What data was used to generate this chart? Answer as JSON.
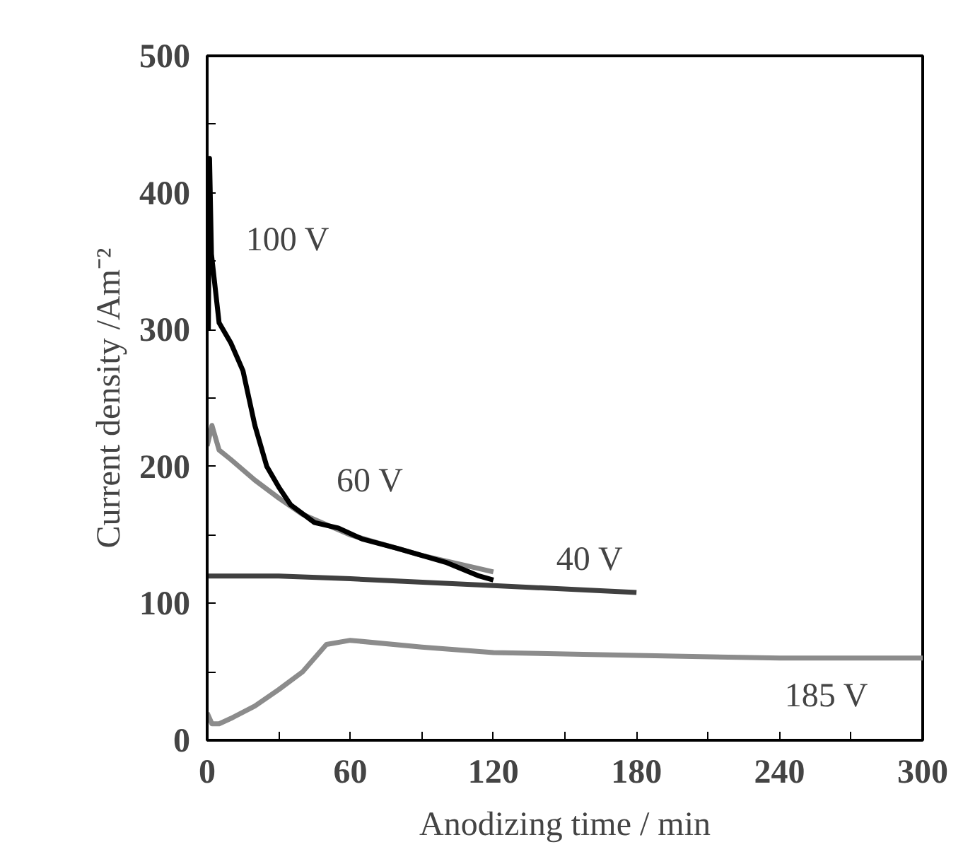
{
  "chart_data": {
    "type": "line",
    "xlabel": "Anodizing time / min",
    "ylabel": "Current density /Am⁻²",
    "xlim": [
      0,
      300
    ],
    "ylim": [
      0,
      500
    ],
    "xticks": [
      0,
      {
        "value": 30,
        "label": null
      },
      60,
      {
        "value": 90,
        "label": null
      },
      120,
      {
        "value": 150,
        "label": null
      },
      180,
      {
        "value": 210,
        "label": null
      },
      240,
      {
        "value": 270,
        "label": null
      },
      300
    ],
    "yticks": [
      0,
      {
        "value": 50,
        "label": null
      },
      100,
      {
        "value": 150,
        "label": null
      },
      200,
      {
        "value": 250,
        "label": null
      },
      300,
      {
        "value": 350,
        "label": null
      },
      400,
      {
        "value": 450,
        "label": null
      },
      500
    ],
    "grid": false,
    "marker": "none",
    "line_style": "solid",
    "series": [
      {
        "name": "185 V",
        "color": "#8c8c8c",
        "x": [
          0,
          2,
          5,
          10,
          20,
          30,
          40,
          50,
          60,
          90,
          120,
          180,
          240,
          300
        ],
        "values": [
          20,
          12,
          12,
          16,
          25,
          37,
          50,
          70,
          73,
          68,
          64,
          62,
          60,
          60
        ]
      },
      {
        "name": "40 V",
        "color": "#404040",
        "x": [
          0,
          30,
          60,
          120,
          180
        ],
        "values": [
          120,
          120,
          118,
          113,
          108
        ]
      },
      {
        "name": "60 V",
        "color": "#888888",
        "x": [
          0,
          2,
          5,
          10,
          20,
          30,
          40,
          60,
          90,
          120
        ],
        "values": [
          215,
          230,
          212,
          205,
          190,
          177,
          165,
          150,
          135,
          123
        ]
      },
      {
        "name": "100 V",
        "color": "#000000",
        "x": [
          0.5,
          1,
          1.8,
          5,
          10,
          15,
          20,
          25,
          30,
          35,
          45,
          55,
          65,
          80,
          100,
          114,
          120
        ],
        "values": [
          300,
          425,
          355,
          305,
          290,
          270,
          230,
          200,
          185,
          172,
          159,
          155,
          147,
          140,
          130,
          120,
          117
        ]
      }
    ]
  }
}
